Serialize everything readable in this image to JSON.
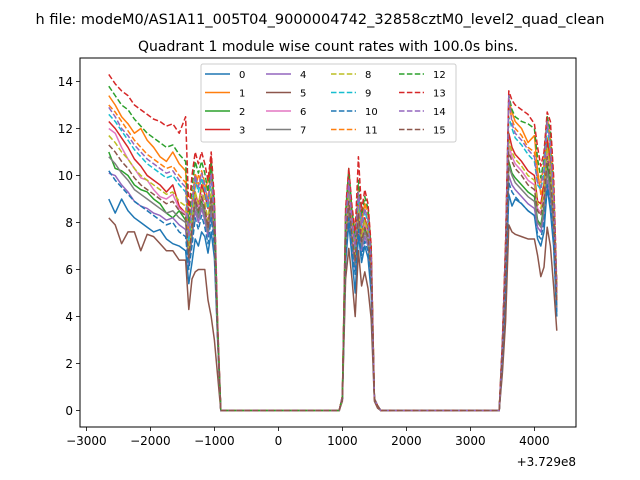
{
  "figure": {
    "suptitle": "h file: modeM0/AS1A11_005T04_9000004742_32858cztM0_level2_quad_clean",
    "title": "Quadrant 1 module wise count rates with 100.0s bins.",
    "offset_text": "+3.729e8"
  },
  "chart_data": {
    "type": "line",
    "title": "Quadrant 1 module wise count rates with 100.0s bins.",
    "xlabel": "",
    "ylabel": "",
    "x_offset": 372900000,
    "xlim": [
      -3100,
      4650
    ],
    "ylim": [
      -0.7,
      15
    ],
    "xticks": [
      -3000,
      -2000,
      -1000,
      0,
      1000,
      2000,
      3000,
      4000
    ],
    "xtick_labels": [
      "−3000",
      "−2000",
      "−1000",
      "0",
      "1000",
      "2000",
      "3000",
      "4000"
    ],
    "yticks": [
      0,
      2,
      4,
      6,
      8,
      10,
      12,
      14
    ],
    "ytick_labels": [
      "0",
      "2",
      "4",
      "6",
      "8",
      "10",
      "12",
      "14"
    ],
    "grid": false,
    "legend_placement": "upper center",
    "legend_columns": 4,
    "x": [
      -2650,
      -2550,
      -2450,
      -2350,
      -2250,
      -2150,
      -2050,
      -1950,
      -1850,
      -1750,
      -1650,
      -1550,
      -1450,
      -1400,
      -1350,
      -1300,
      -1250,
      -1200,
      -1150,
      -1100,
      -1050,
      -1000,
      -950,
      -900,
      -850,
      950,
      1000,
      1050,
      1100,
      1150,
      1200,
      1250,
      1300,
      1350,
      1400,
      1450,
      1500,
      1550,
      1600,
      1650,
      3450,
      3500,
      3550,
      3600,
      3650,
      3700,
      3800,
      3900,
      4000,
      4050,
      4100,
      4150,
      4200,
      4250,
      4300,
      4350
    ],
    "series": [
      {
        "name": "0",
        "color": "#1f77b4",
        "dash": "solid",
        "values": [
          9.0,
          8.4,
          9.0,
          8.5,
          8.2,
          8.0,
          7.8,
          7.6,
          7.7,
          7.3,
          7.1,
          7.0,
          6.8,
          5.4,
          6.3,
          7.3,
          7.0,
          7.6,
          7.4,
          6.7,
          7.6,
          6.5,
          3.0,
          0,
          0,
          0,
          0.5,
          6.3,
          8.0,
          6.5,
          5.0,
          7.5,
          6.3,
          7.0,
          6.5,
          5.0,
          0.5,
          0.2,
          0,
          0,
          0,
          2.0,
          5.0,
          9.2,
          8.7,
          9.0,
          8.8,
          8.5,
          8.3,
          7.3,
          7.0,
          7.6,
          9.5,
          8.5,
          7.0,
          4.0
        ]
      },
      {
        "name": "1",
        "color": "#ff7f0e",
        "dash": "solid",
        "values": [
          13.4,
          13.0,
          12.5,
          12.2,
          11.8,
          12.0,
          11.5,
          11.2,
          10.8,
          10.6,
          11.0,
          10.5,
          10.2,
          7.8,
          8.8,
          9.5,
          10.0,
          9.8,
          9.4,
          9.8,
          10.6,
          7.2,
          3.3,
          0,
          0,
          0,
          0.6,
          8.3,
          9.6,
          8.4,
          7.6,
          9.1,
          8.1,
          8.8,
          8.6,
          6.8,
          0.5,
          0.2,
          0,
          0,
          0,
          2.8,
          7.0,
          13.2,
          12.7,
          12.3,
          12.0,
          11.4,
          11.7,
          10.2,
          9.2,
          9.6,
          11.6,
          10.9,
          9.3,
          5.0
        ]
      },
      {
        "name": "2",
        "color": "#2ca02c",
        "dash": "solid",
        "values": [
          11.0,
          10.3,
          10.2,
          10.0,
          9.6,
          9.4,
          9.3,
          9.0,
          8.8,
          8.4,
          8.2,
          8.5,
          8.1,
          6.7,
          7.6,
          8.8,
          8.4,
          8.9,
          8.4,
          7.6,
          8.7,
          7.6,
          3.3,
          0,
          0,
          0,
          0.5,
          7.2,
          8.9,
          7.3,
          6.3,
          8.3,
          7.1,
          7.8,
          7.3,
          5.8,
          0.5,
          0.2,
          0,
          0,
          0,
          2.3,
          5.8,
          10.6,
          10.1,
          9.9,
          9.6,
          9.3,
          9.1,
          8.1,
          7.9,
          8.7,
          10.5,
          9.6,
          7.9,
          4.5
        ]
      },
      {
        "name": "3",
        "color": "#d62728",
        "dash": "solid",
        "values": [
          12.3,
          12.0,
          11.6,
          11.2,
          10.7,
          10.4,
          10.0,
          9.8,
          9.6,
          9.3,
          9.6,
          8.7,
          8.4,
          6.5,
          8.0,
          9.3,
          8.7,
          9.6,
          9.2,
          8.6,
          10.8,
          7.2,
          3.2,
          0,
          0,
          0,
          0.6,
          7.6,
          9.5,
          7.7,
          6.6,
          8.8,
          7.5,
          8.2,
          7.7,
          6.1,
          0.5,
          0.2,
          0,
          0,
          0,
          2.5,
          6.3,
          11.8,
          11.2,
          10.9,
          10.6,
          10.2,
          10.0,
          8.9,
          8.8,
          9.6,
          11.5,
          10.5,
          8.6,
          4.8
        ]
      },
      {
        "name": "4",
        "color": "#9467bd",
        "dash": "solid",
        "values": [
          10.1,
          10.0,
          9.6,
          9.3,
          8.9,
          8.7,
          8.6,
          8.4,
          8.3,
          8.1,
          8.2,
          7.9,
          7.7,
          6.2,
          7.3,
          8.5,
          8.0,
          8.6,
          8.1,
          7.4,
          8.4,
          7.3,
          3.2,
          0,
          0,
          0,
          0.5,
          6.8,
          8.4,
          7.0,
          6.0,
          7.9,
          6.8,
          7.4,
          7.0,
          5.6,
          0.5,
          0.2,
          0,
          0,
          0,
          2.2,
          5.5,
          10.0,
          9.6,
          9.4,
          9.1,
          8.8,
          8.6,
          7.8,
          7.6,
          8.3,
          9.8,
          9.0,
          7.5,
          4.3
        ]
      },
      {
        "name": "5",
        "color": "#8c564b",
        "dash": "solid",
        "values": [
          8.2,
          7.9,
          7.1,
          7.6,
          7.6,
          6.8,
          7.5,
          7.4,
          7.1,
          6.8,
          6.8,
          6.4,
          6.4,
          4.3,
          5.6,
          5.9,
          6.0,
          6.0,
          6.0,
          4.7,
          4.0,
          3.0,
          1.5,
          0,
          0,
          0,
          0.4,
          5.6,
          6.9,
          5.6,
          4.0,
          6.8,
          5.3,
          5.9,
          5.2,
          3.9,
          0.4,
          0.1,
          0,
          0,
          0,
          1.6,
          3.8,
          7.9,
          7.6,
          7.5,
          7.4,
          7.3,
          7.3,
          6.6,
          5.7,
          6.1,
          7.8,
          7.0,
          5.3,
          3.4
        ]
      },
      {
        "name": "6",
        "color": "#e377c2",
        "dash": "solid",
        "values": [
          12.0,
          11.8,
          11.2,
          10.7,
          10.3,
          9.9,
          9.8,
          9.4,
          9.1,
          9.0,
          9.2,
          8.6,
          8.4,
          6.6,
          7.8,
          9.1,
          8.6,
          9.2,
          8.7,
          7.9,
          9.2,
          7.6,
          3.3,
          0,
          0,
          0,
          0.5,
          7.3,
          9.1,
          7.5,
          6.5,
          8.6,
          7.3,
          8.0,
          7.5,
          6.0,
          0.5,
          0.2,
          0,
          0,
          0,
          2.4,
          6.1,
          11.3,
          10.8,
          10.5,
          10.2,
          9.8,
          9.6,
          8.6,
          8.4,
          9.1,
          11.0,
          10.1,
          8.3,
          4.6
        ]
      },
      {
        "name": "7",
        "color": "#7f7f7f",
        "dash": "solid",
        "values": [
          10.8,
          10.5,
          10.1,
          9.8,
          9.4,
          9.2,
          9.0,
          8.8,
          8.6,
          8.4,
          8.5,
          8.2,
          8.0,
          6.4,
          7.5,
          8.8,
          8.2,
          8.8,
          8.3,
          7.6,
          8.8,
          7.4,
          3.2,
          0,
          0,
          0,
          0.5,
          7.0,
          8.6,
          7.2,
          6.2,
          8.1,
          7.0,
          7.6,
          7.2,
          5.7,
          0.5,
          0.2,
          0,
          0,
          0,
          2.3,
          5.7,
          10.4,
          10.0,
          9.7,
          9.4,
          9.1,
          8.9,
          8.0,
          7.8,
          8.5,
          10.2,
          9.3,
          7.7,
          4.4
        ]
      },
      {
        "name": "8",
        "color": "#bcbd22",
        "dash": "dashed",
        "values": [
          11.7,
          11.4,
          11.0,
          10.7,
          10.3,
          10.0,
          9.8,
          9.6,
          9.4,
          9.2,
          9.3,
          8.9,
          8.7,
          6.8,
          8.1,
          9.3,
          8.8,
          9.4,
          8.9,
          8.1,
          9.4,
          7.8,
          3.4,
          0,
          0,
          0,
          0.5,
          7.5,
          9.2,
          7.6,
          6.6,
          8.7,
          7.4,
          8.1,
          7.6,
          6.1,
          0.5,
          0.2,
          0,
          0,
          0,
          2.5,
          6.2,
          11.5,
          11.0,
          10.7,
          10.4,
          10.0,
          9.8,
          8.8,
          8.6,
          9.3,
          11.2,
          10.3,
          8.5,
          4.7
        ]
      },
      {
        "name": "9",
        "color": "#17becf",
        "dash": "dashed",
        "values": [
          12.6,
          12.3,
          11.9,
          11.5,
          11.1,
          10.8,
          10.5,
          10.3,
          10.1,
          9.9,
          10.0,
          9.6,
          9.3,
          7.2,
          8.6,
          9.8,
          9.3,
          9.9,
          9.4,
          8.6,
          9.9,
          8.2,
          3.5,
          0,
          0,
          0,
          0.6,
          7.9,
          9.7,
          8.0,
          6.9,
          9.2,
          7.8,
          8.5,
          8.0,
          6.4,
          0.5,
          0.2,
          0,
          0,
          0,
          2.7,
          6.6,
          12.5,
          12.0,
          11.6,
          11.3,
          10.9,
          10.6,
          9.6,
          9.4,
          10.1,
          12.1,
          11.1,
          9.1,
          5.0
        ]
      },
      {
        "name": "10",
        "color": "#1f77b4",
        "dash": "dashed",
        "values": [
          10.2,
          9.8,
          9.5,
          9.2,
          8.9,
          8.7,
          8.5,
          8.3,
          8.1,
          7.9,
          8.0,
          7.6,
          7.4,
          6.0,
          7.0,
          8.2,
          7.7,
          8.3,
          7.8,
          7.1,
          8.2,
          7.0,
          3.1,
          0,
          0,
          0,
          0.5,
          6.6,
          8.2,
          6.8,
          5.8,
          7.7,
          6.6,
          7.2,
          6.8,
          5.4,
          0.5,
          0.2,
          0,
          0,
          0,
          2.2,
          5.3,
          9.7,
          9.3,
          9.1,
          8.8,
          8.5,
          8.3,
          7.5,
          7.3,
          8.0,
          9.6,
          8.8,
          7.2,
          4.2
        ]
      },
      {
        "name": "11",
        "color": "#ff7f0e",
        "dash": "dashed",
        "values": [
          13.0,
          12.7,
          12.3,
          11.9,
          11.5,
          11.2,
          10.9,
          10.7,
          10.5,
          10.3,
          10.4,
          10.0,
          9.7,
          7.5,
          8.9,
          10.1,
          9.6,
          10.2,
          9.7,
          8.9,
          10.2,
          8.5,
          3.6,
          0,
          0,
          0,
          0.6,
          8.1,
          10.0,
          8.2,
          7.1,
          9.5,
          8.0,
          8.8,
          8.3,
          6.6,
          0.5,
          0.2,
          0,
          0,
          0,
          2.8,
          6.8,
          13.0,
          12.4,
          12.0,
          11.7,
          11.2,
          11.0,
          9.9,
          9.7,
          10.5,
          12.5,
          11.5,
          9.4,
          5.1
        ]
      },
      {
        "name": "12",
        "color": "#2ca02c",
        "dash": "dashed",
        "values": [
          13.8,
          13.4,
          13.0,
          12.8,
          12.4,
          12.1,
          11.8,
          11.6,
          11.4,
          11.2,
          11.3,
          10.9,
          10.6,
          8.0,
          9.5,
          10.6,
          10.1,
          10.6,
          10.1,
          9.3,
          10.5,
          8.8,
          3.7,
          0,
          0,
          0,
          0.6,
          8.4,
          10.3,
          8.5,
          7.4,
          9.8,
          8.3,
          9.1,
          8.6,
          6.8,
          0.5,
          0.2,
          0,
          0,
          0,
          2.9,
          7.0,
          13.4,
          12.8,
          12.5,
          12.3,
          12.2,
          12.0,
          10.7,
          9.9,
          10.7,
          12.5,
          11.9,
          9.7,
          5.2
        ]
      },
      {
        "name": "13",
        "color": "#d62728",
        "dash": "dashed",
        "values": [
          14.3,
          13.9,
          13.6,
          13.4,
          13.0,
          12.8,
          12.6,
          12.4,
          12.3,
          12.1,
          12.2,
          11.8,
          12.5,
          8.5,
          10.0,
          11.0,
          10.5,
          11.0,
          10.5,
          9.8,
          11.0,
          9.0,
          3.8,
          0,
          0,
          0,
          0.6,
          8.6,
          10.3,
          8.7,
          7.6,
          10.8,
          8.5,
          9.4,
          8.8,
          7.0,
          0.5,
          0.2,
          0,
          0,
          0,
          3.0,
          7.2,
          13.6,
          13.2,
          13.0,
          12.8,
          12.6,
          12.2,
          11.2,
          10.4,
          11.0,
          12.7,
          12.3,
          10.0,
          5.3
        ]
      },
      {
        "name": "14",
        "color": "#9467bd",
        "dash": "dashed",
        "values": [
          12.9,
          12.5,
          12.0,
          11.7,
          11.3,
          11.0,
          10.7,
          10.5,
          10.3,
          10.1,
          10.2,
          9.8,
          9.5,
          7.4,
          8.8,
          10.0,
          9.5,
          10.1,
          9.6,
          8.8,
          10.1,
          8.4,
          3.5,
          0,
          0,
          0,
          0.6,
          8.0,
          9.8,
          8.1,
          7.0,
          9.3,
          7.9,
          8.6,
          8.1,
          6.5,
          0.5,
          0.2,
          0,
          0,
          0,
          2.8,
          6.7,
          13.4,
          12.2,
          11.8,
          11.5,
          11.1,
          10.8,
          9.7,
          9.5,
          10.3,
          12.3,
          11.3,
          9.2,
          5.0
        ]
      },
      {
        "name": "15",
        "color": "#8c564b",
        "dash": "dashed",
        "values": [
          11.3,
          11.0,
          10.6,
          10.3,
          9.9,
          9.6,
          9.4,
          9.2,
          9.0,
          8.8,
          8.9,
          8.5,
          8.3,
          6.5,
          7.8,
          9.0,
          8.5,
          9.1,
          8.6,
          7.8,
          9.1,
          7.6,
          3.3,
          0,
          0,
          0,
          0.5,
          7.3,
          8.9,
          7.4,
          6.4,
          8.4,
          7.2,
          7.8,
          7.4,
          5.9,
          0.5,
          0.2,
          0,
          0,
          0,
          2.4,
          6.0,
          11.0,
          10.6,
          10.3,
          10.0,
          9.6,
          9.4,
          8.5,
          8.3,
          9.0,
          10.8,
          9.9,
          8.2,
          4.6
        ]
      }
    ]
  }
}
